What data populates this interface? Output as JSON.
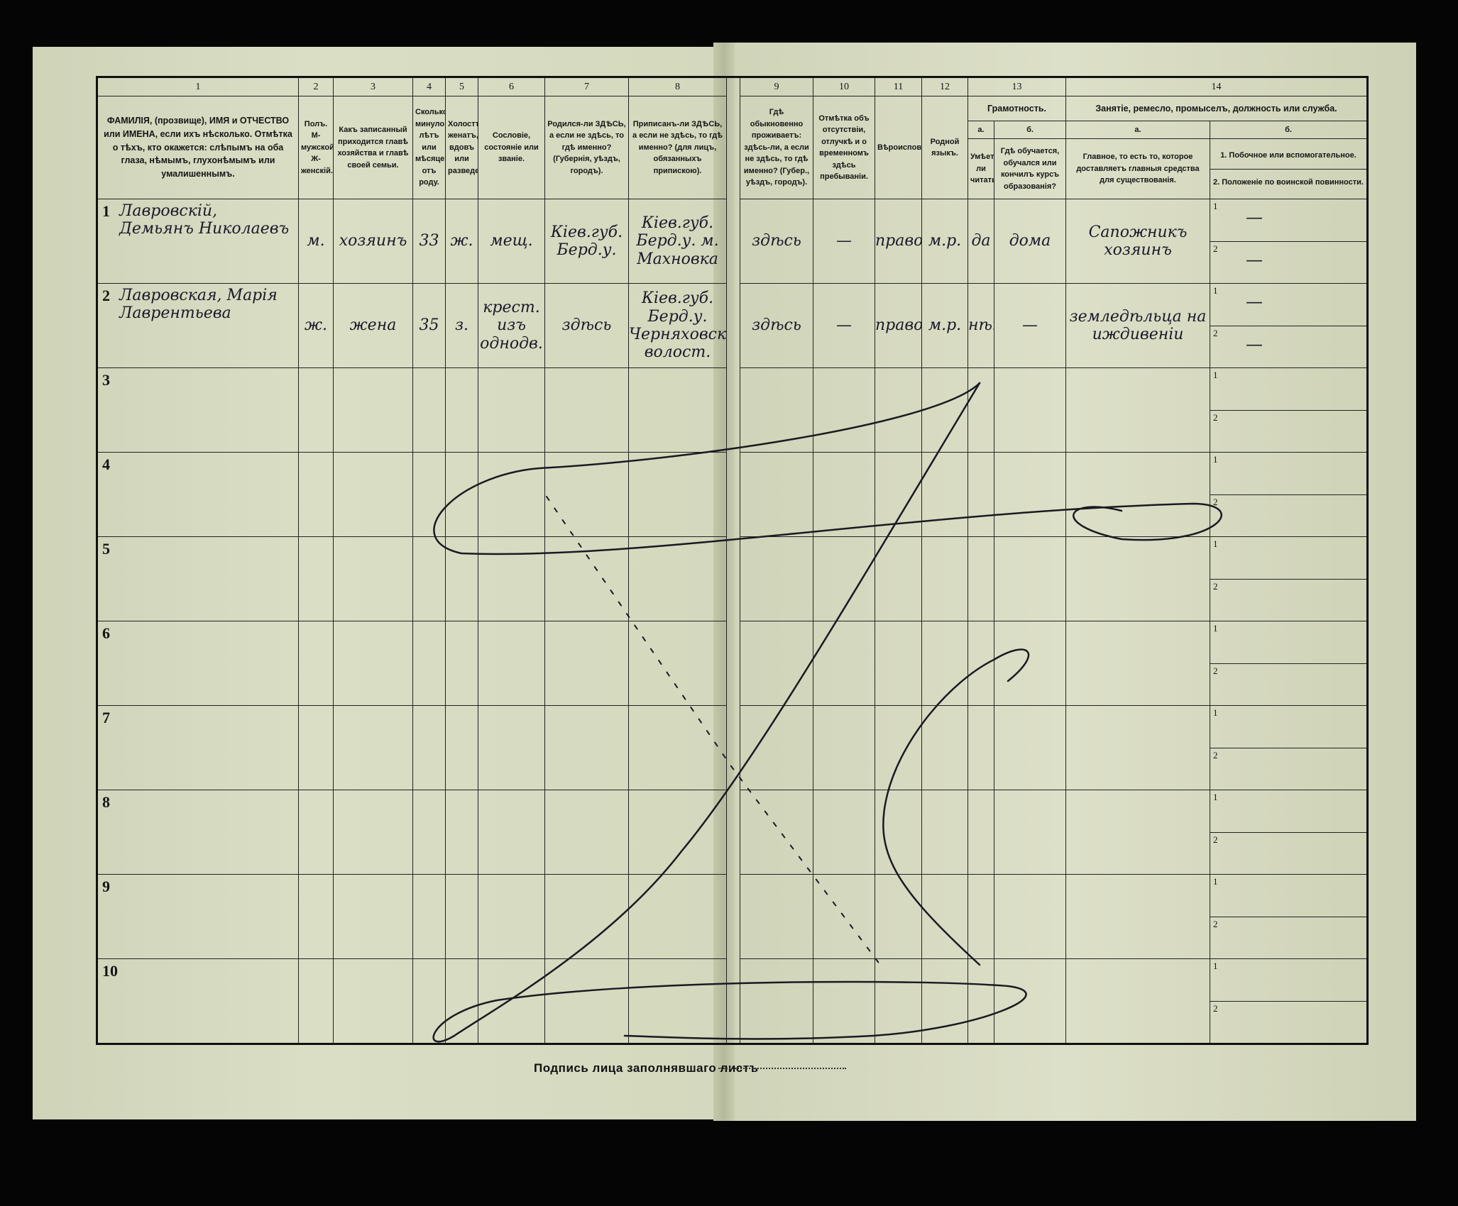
{
  "header": {
    "col1": {
      "num": "1",
      "text": "ФАМИЛІЯ, (прозвище), ИМЯ и ОТЧЕСТВО или ИМЕНА, если ихъ нѣсколько. Отмѣтка о тѣхъ, кто окажется: слѣпымъ на оба глаза, нѣмымъ, глухонѣмымъ или умалишеннымъ."
    },
    "col2": {
      "num": "2",
      "text": "Полъ. М-мужской. Ж-женскій."
    },
    "col3": {
      "num": "3",
      "text": "Какъ записанный приходится главѣ хозяйства и главѣ своей семьи."
    },
    "col4": {
      "num": "4",
      "text": "Сколько минуло лѣтъ или мѣсяцевъ отъ роду."
    },
    "col5": {
      "num": "5",
      "text": "Холостъ, женатъ, вдовъ или разведенъ."
    },
    "col6": {
      "num": "6",
      "text": "Сословіе, состояніе или званіе."
    },
    "col7": {
      "num": "7",
      "text": "Родился-ли ЗДѢСЬ, а если не здѣсь, то гдѣ именно? (Губернія, уѣздъ, городъ)."
    },
    "col8": {
      "num": "8",
      "text": "Приписанъ-ли ЗДѢСЬ, а если не здѣсь, то гдѣ именно? (для лицъ, обязанныхъ припискою)."
    },
    "col9": {
      "num": "9",
      "text": "Гдѣ обыкновенно проживаетъ: здѣсь-ли, а если не здѣсь, то гдѣ именно? (Губер., уѣздъ, городъ)."
    },
    "col10": {
      "num": "10",
      "text": "Отмѣтка объ отсутствіи, отлучкѣ и о временномъ здѣсь пребываніи."
    },
    "col11": {
      "num": "11",
      "text": "Вѣроисповѣданіе."
    },
    "col12": {
      "num": "12",
      "text": "Родной языкъ."
    },
    "col13": {
      "num": "13",
      "title": "Грамотность.",
      "a_label": "а.",
      "a_text": "Умѣетъ-ли читать?",
      "b_label": "б.",
      "b_text": "Гдѣ обучается, обучался или кончилъ курсъ образованія?"
    },
    "col14": {
      "num": "14",
      "title": "Занятіе, ремесло, промыселъ, должность или служба.",
      "a_label": "а.",
      "a_text": "Главное, то есть то, которое доставляетъ главныя средства для существованія.",
      "b_label": "б.",
      "b_text1": "1. Побочное или вспомогательное.",
      "b_text2": "2. Положеніе по воинской повинности."
    }
  },
  "rows": [
    {
      "n": "1",
      "name": "Лавровскій, Демьянъ Николаевъ",
      "sex": "м.",
      "relation": "хозяинъ",
      "age": "33",
      "marital": "ж.",
      "estate": "мещ.",
      "birthplace": "Кіев.губ. Берд.у.",
      "registered": "Кіев.губ. Берд.у. м. Махновка",
      "residence": "здѣсь",
      "absence": "—",
      "religion": "правосл.",
      "language": "м.р.",
      "literate": "да",
      "education": "дома",
      "occupation_main": "Сапожникъ хозяинъ",
      "occupation_side": "—",
      "military": "—"
    },
    {
      "n": "2",
      "name": "Лавровская, Марія Лаврентьева",
      "sex": "ж.",
      "relation": "жена",
      "age": "35",
      "marital": "з.",
      "estate": "крест. изъ однодв.",
      "birthplace": "здѣсь",
      "registered": "Кіев.губ. Берд.у. Черняховск. волост.",
      "residence": "здѣсь",
      "absence": "—",
      "religion": "правосл.",
      "language": "м.р.",
      "literate": "нѣтъ",
      "education": "—",
      "occupation_main": "земледѣльца на иждивеніи",
      "occupation_side": "—",
      "military": "—"
    },
    {
      "n": "3"
    },
    {
      "n": "4"
    },
    {
      "n": "5"
    },
    {
      "n": "6"
    },
    {
      "n": "7"
    },
    {
      "n": "8"
    },
    {
      "n": "9"
    },
    {
      "n": "10"
    }
  ],
  "subrow_labels": [
    "1",
    "2"
  ],
  "footer": {
    "signature_label": "Подпись лица заполнявшаго листъ"
  },
  "colors": {
    "paper": "#d8dcc2",
    "ink": "#151515",
    "background": "#050505"
  }
}
